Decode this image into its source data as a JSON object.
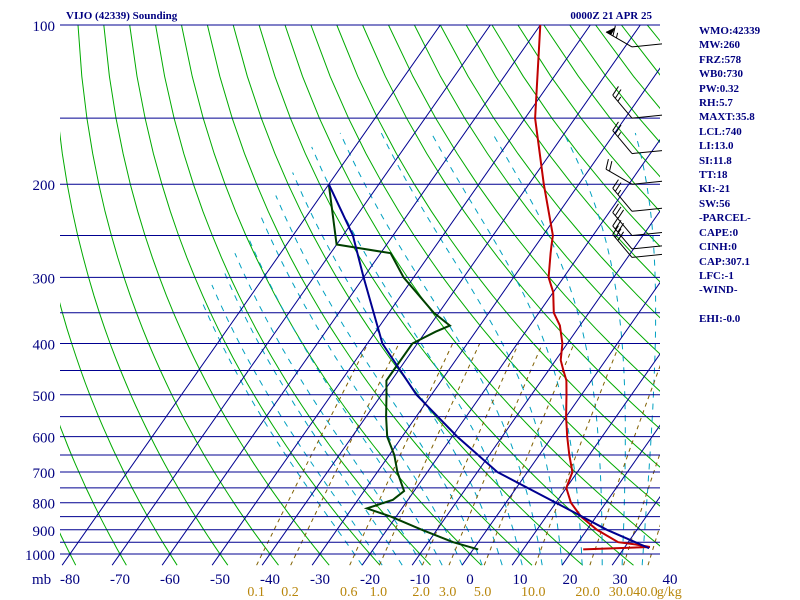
{
  "chart_data": {
    "type": "line",
    "title": "VIJO (42339) Sounding",
    "time": "0000Z 21 APR 25",
    "y_axis_label": "mb",
    "y_ticks": [
      "100",
      "200",
      "300",
      "400",
      "500",
      "600",
      "700",
      "800",
      "900",
      "1000"
    ],
    "x_ticks": [
      "-80",
      "-70",
      "-60",
      "-50",
      "-40",
      "-30",
      "-20",
      "-10",
      "0",
      "10",
      "20",
      "30",
      "40"
    ],
    "mixing_ratio_labels": [
      "0.1",
      "0.2",
      "0.6",
      "1.0",
      "2.0",
      "3.0",
      "5.0",
      "10.0",
      "20.0",
      "30.0",
      "40.0"
    ],
    "mixing_ratio_unit": "g/kg",
    "series": [
      {
        "color": "#c00000",
        "p": [
          980,
          970,
          960,
          950,
          900,
          850,
          800,
          750,
          700,
          650,
          600,
          550,
          500,
          470,
          450,
          430,
          400,
          370,
          350,
          320,
          300,
          270,
          260,
          250,
          200,
          150,
          100
        ],
        "t": [
          22,
          35,
          32,
          28,
          22,
          17,
          13,
          10,
          9,
          6,
          3,
          0,
          -3,
          -5,
          -7,
          -9,
          -11,
          -14,
          -17,
          -20,
          -23,
          -26,
          -27,
          -28,
          -37,
          -48,
          -60
        ]
      },
      {
        "color": "#004000",
        "p": [
          980,
          950,
          900,
          850,
          820,
          790,
          760,
          700,
          650,
          600,
          550,
          500,
          470,
          450,
          400,
          380,
          370,
          350,
          300,
          270,
          260,
          200
        ],
        "t": [
          1,
          -5,
          -13,
          -21,
          -27,
          -23,
          -22,
          -26,
          -29,
          -33,
          -36,
          -39,
          -41,
          -41,
          -41,
          -38,
          -36,
          -41,
          -52,
          -58,
          -70,
          -80
        ]
      },
      {
        "color": "#000090",
        "p": [
          975,
          900,
          800,
          700,
          600,
          500,
          400,
          300,
          250,
          200
        ],
        "t": [
          35,
          24,
          10,
          -6,
          -19,
          -33,
          -47,
          -60,
          -68,
          -80
        ]
      }
    ],
    "winds": [
      {
        "p": 110,
        "dir": 300,
        "spd": 65
      },
      {
        "p": 150,
        "dir": 320,
        "spd": 25
      },
      {
        "p": 175,
        "dir": 320,
        "spd": 25
      },
      {
        "p": 200,
        "dir": 300,
        "spd": 20
      },
      {
        "p": 225,
        "dir": 320,
        "spd": 25
      },
      {
        "p": 250,
        "dir": 320,
        "spd": 30
      },
      {
        "p": 265,
        "dir": 320,
        "spd": 30
      },
      {
        "p": 275,
        "dir": 320,
        "spd": 30
      }
    ]
  },
  "indices": [
    "WMO:42339",
    "MW:260",
    "FRZ:578",
    "WB0:730",
    "PW:0.32",
    "RH:5.7",
    "MAXT:35.8",
    "LCL:740",
    "LI:13.0",
    "SI:11.8",
    "TT:18",
    "KI:-21",
    "SW:56",
    "-PARCEL-",
    "CAPE:0",
    "CINH:0",
    "CAP:307.1",
    "LFC:-1",
    "-WIND-",
    "",
    "EHI:-0.0"
  ],
  "colors": {
    "isobar": "#000090",
    "dry_adiabat": "#00aa00",
    "moist_adiabat": "#00a0c0",
    "mixing_ratio": "#806000",
    "axis_text": "#000080"
  }
}
